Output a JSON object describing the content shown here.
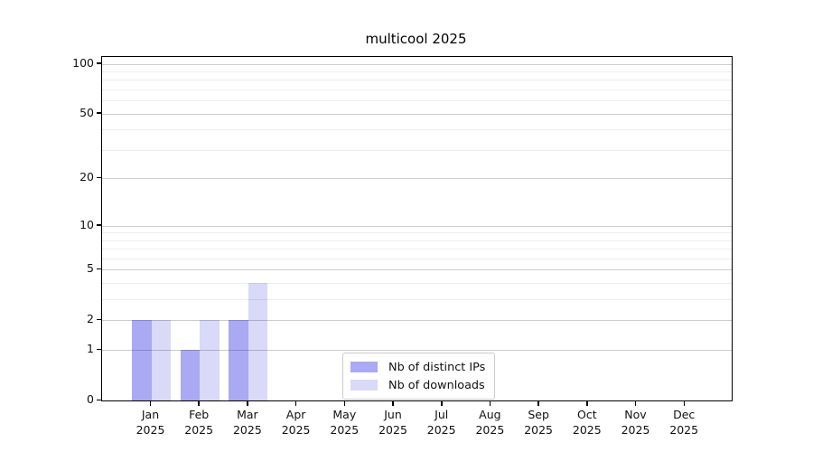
{
  "title": "multicool 2025",
  "chart_data": {
    "type": "bar",
    "title": "multicool 2025",
    "categories": [
      "Jan",
      "Feb",
      "Mar",
      "Apr",
      "May",
      "Jun",
      "Jul",
      "Aug",
      "Sep",
      "Oct",
      "Nov",
      "Dec"
    ],
    "category_year": "2025",
    "series": [
      {
        "name": "Nb of distinct IPs",
        "color": "#a9a9f4",
        "values": [
          2,
          1,
          2,
          0,
          0,
          0,
          0,
          0,
          0,
          0,
          0,
          0
        ]
      },
      {
        "name": "Nb of downloads",
        "color": "#d9d9f8",
        "values": [
          2,
          2,
          4,
          0,
          0,
          0,
          0,
          0,
          0,
          0,
          0,
          0
        ]
      }
    ],
    "y_axis": {
      "scale": "log10(1+v)",
      "ticks": [
        0,
        1,
        2,
        5,
        10,
        20,
        50,
        100
      ],
      "minor_gridlines": [
        3,
        4,
        6,
        7,
        8,
        9,
        30,
        40,
        60,
        70,
        80,
        90
      ],
      "top_value": 110
    },
    "x_axis": {
      "tick_year_line": "2025"
    },
    "legend": {
      "position": "inside-bottom-center",
      "entries": [
        "Nb of distinct IPs",
        "Nb of downloads"
      ]
    },
    "grid": "on",
    "background_color": "#ffffff"
  }
}
